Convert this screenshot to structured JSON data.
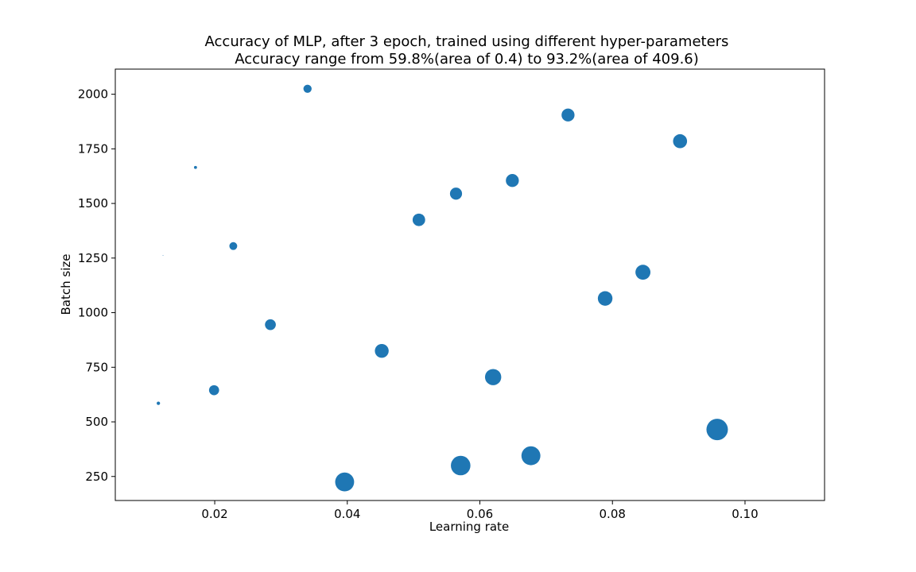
{
  "chart_data": {
    "type": "scatter",
    "title": "Accuracy of MLP, after 3 epoch, trained using different hyper-parameters",
    "subtitle": "Accuracy range from 59.8%(area of 0.4) to 93.2%(area of 409.6)",
    "xlabel": "Learning rate",
    "ylabel": "Batch size",
    "xlim": [
      0.005,
      0.112
    ],
    "ylim": [
      140,
      2115
    ],
    "xticks": [
      "0.02",
      "0.04",
      "0.06",
      "0.08",
      "0.10"
    ],
    "yticks": [
      "250",
      "500",
      "750",
      "1000",
      "1250",
      "1500",
      "1750",
      "2000"
    ],
    "color": "#1f77b4",
    "grid": false,
    "points": [
      {
        "x": 0.034,
        "y": 2025,
        "area": 60
      },
      {
        "x": 0.0733,
        "y": 1905,
        "area": 150
      },
      {
        "x": 0.0902,
        "y": 1785,
        "area": 175
      },
      {
        "x": 0.0171,
        "y": 1665,
        "area": 8
      },
      {
        "x": 0.0649,
        "y": 1605,
        "area": 150
      },
      {
        "x": 0.0564,
        "y": 1545,
        "area": 130
      },
      {
        "x": 0.0508,
        "y": 1425,
        "area": 140
      },
      {
        "x": 0.0228,
        "y": 1305,
        "area": 55
      },
      {
        "x": 0.0122,
        "y": 1262,
        "area": 0.4
      },
      {
        "x": 0.0846,
        "y": 1185,
        "area": 200
      },
      {
        "x": 0.0789,
        "y": 1065,
        "area": 190
      },
      {
        "x": 0.0284,
        "y": 945,
        "area": 105
      },
      {
        "x": 0.0452,
        "y": 825,
        "area": 170
      },
      {
        "x": 0.062,
        "y": 705,
        "area": 235
      },
      {
        "x": 0.0199,
        "y": 645,
        "area": 90
      },
      {
        "x": 0.0115,
        "y": 585,
        "area": 10
      },
      {
        "x": 0.0958,
        "y": 465,
        "area": 409.6
      },
      {
        "x": 0.0677,
        "y": 345,
        "area": 320
      },
      {
        "x": 0.0571,
        "y": 300,
        "area": 340
      },
      {
        "x": 0.0396,
        "y": 225,
        "area": 320
      }
    ]
  }
}
